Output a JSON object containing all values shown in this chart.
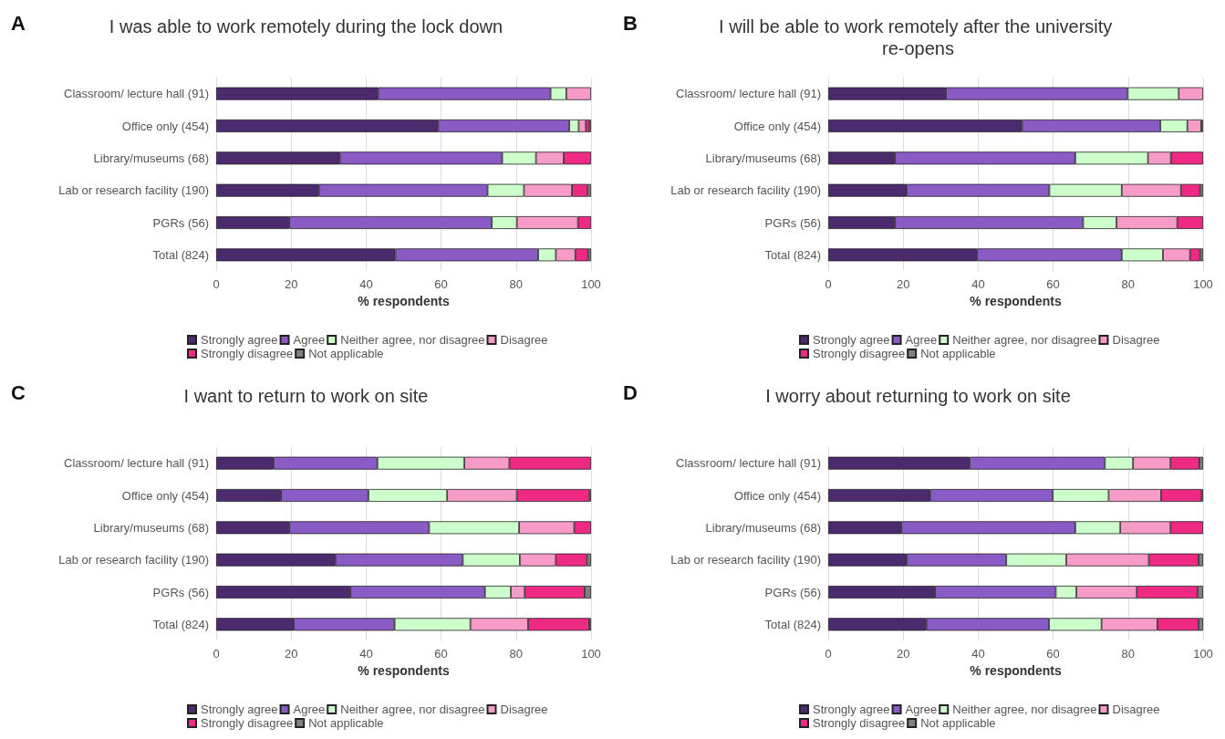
{
  "chart_data": [
    {
      "type": "bar",
      "orientation": "horizontal",
      "stacked": true,
      "title": "I was able to work remotely during the lock down",
      "annotations": [
        "A"
      ],
      "categories": [
        "Classroom/ lecture hall (91)",
        "Office only (454)",
        "Library/museums (68)",
        "Lab or research facility (190)",
        "PGRs (56)",
        "Total (824)"
      ],
      "xlabel": "% respondents",
      "xlim": [
        0,
        100
      ],
      "xticks": [
        0,
        20,
        40,
        60,
        80,
        100
      ],
      "grid": "x",
      "legend": "bottom",
      "series": [
        {
          "name": "Strongly agree",
          "color": "#4b2a6e",
          "values": [
            43.2,
            59.2,
            33.0,
            27.4,
            19.5,
            47.8
          ]
        },
        {
          "name": "Agree",
          "color": "#8a5bc4",
          "values": [
            46.0,
            35.0,
            43.3,
            45.0,
            54.0,
            38.1
          ]
        },
        {
          "name": "Neither agree, nor disagree",
          "color": "#ccffcc",
          "values": [
            4.2,
            2.5,
            9.0,
            9.7,
            6.7,
            4.7
          ]
        },
        {
          "name": "Disagree",
          "color": "#f79cc8",
          "values": [
            6.6,
            1.9,
            7.4,
            12.8,
            16.3,
            5.2
          ]
        },
        {
          "name": "Strongly disagree",
          "color": "#ee2a85",
          "values": [
            0,
            1.0,
            7.3,
            4.2,
            3.5,
            3.4
          ]
        },
        {
          "name": "Not applicable",
          "color": "#808080",
          "values": [
            0,
            0.4,
            0,
            0.9,
            0,
            0.8
          ]
        }
      ]
    },
    {
      "type": "bar",
      "orientation": "horizontal",
      "stacked": true,
      "title": "I will be able to work remotely after the university re-opens",
      "annotations": [
        "B"
      ],
      "categories": [
        "Classroom/ lecture hall (91)",
        "Office only (454)",
        "Library/museums (68)",
        "Lab or research facility (190)",
        "PGRs (56)",
        "Total (824)"
      ],
      "xlabel": "% respondents",
      "xlim": [
        0,
        100
      ],
      "xticks": [
        0,
        20,
        40,
        60,
        80,
        100
      ],
      "grid": "x",
      "legend": "bottom",
      "series": [
        {
          "name": "Strongly agree",
          "color": "#4b2a6e",
          "values": [
            31.4,
            51.7,
            17.8,
            20.9,
            17.8,
            39.7
          ]
        },
        {
          "name": "Agree",
          "color": "#8a5bc4",
          "values": [
            48.5,
            36.9,
            48.1,
            38.1,
            50.2,
            38.6
          ]
        },
        {
          "name": "Neither agree, nor disagree",
          "color": "#ccffcc",
          "values": [
            13.6,
            7.2,
            19.4,
            19.3,
            8.9,
            11.0
          ]
        },
        {
          "name": "Disagree",
          "color": "#f79cc8",
          "values": [
            6.5,
            3.7,
            6.1,
            15.8,
            16.2,
            7.2
          ]
        },
        {
          "name": "Strongly disagree",
          "color": "#ee2a85",
          "values": [
            0,
            0,
            8.6,
            5.1,
            6.9,
            2.7
          ]
        },
        {
          "name": "Not applicable",
          "color": "#808080",
          "values": [
            0,
            0.5,
            0,
            0.8,
            0,
            0.8
          ]
        }
      ]
    },
    {
      "type": "bar",
      "orientation": "horizontal",
      "stacked": true,
      "title": "I want to return to work on site",
      "annotations": [
        "C"
      ],
      "categories": [
        "Classroom/ lecture hall (91)",
        "Office only (454)",
        "Library/museums (68)",
        "Lab or research facility (190)",
        "PGRs (56)",
        "Total (824)"
      ],
      "xlabel": "% respondents",
      "xlim": [
        0,
        100
      ],
      "xticks": [
        0,
        20,
        40,
        60,
        80,
        100
      ],
      "grid": "x",
      "legend": "bottom",
      "series": [
        {
          "name": "Strongly agree",
          "color": "#4b2a6e",
          "values": [
            15.3,
            17.3,
            19.5,
            31.8,
            35.8,
            20.7
          ]
        },
        {
          "name": "Agree",
          "color": "#8a5bc4",
          "values": [
            27.7,
            23.3,
            37.3,
            34.0,
            35.9,
            26.9
          ]
        },
        {
          "name": "Neither agree, nor disagree",
          "color": "#ccffcc",
          "values": [
            23.2,
            21.0,
            24.0,
            15.2,
            6.9,
            20.2
          ]
        },
        {
          "name": "Disagree",
          "color": "#f79cc8",
          "values": [
            12.0,
            18.6,
            14.7,
            9.6,
            3.7,
            15.4
          ]
        },
        {
          "name": "Strongly disagree",
          "color": "#ee2a85",
          "values": [
            21.8,
            19.4,
            4.5,
            8.3,
            16.0,
            16.3
          ]
        },
        {
          "name": "Not applicable",
          "color": "#808080",
          "values": [
            0,
            0.4,
            0,
            1.1,
            1.7,
            0.5
          ]
        }
      ]
    },
    {
      "type": "bar",
      "orientation": "horizontal",
      "stacked": true,
      "title": "I worry about returning to work on site",
      "annotations": [
        "D"
      ],
      "categories": [
        "Classroom/ lecture hall (91)",
        "Office only (454)",
        "Library/museums (68)",
        "Lab or research facility (190)",
        "PGRs (56)",
        "Total (824)"
      ],
      "xlabel": "% respondents",
      "xlim": [
        0,
        100
      ],
      "xticks": [
        0,
        20,
        40,
        60,
        80,
        100
      ],
      "grid": "x",
      "legend": "bottom",
      "series": [
        {
          "name": "Strongly agree",
          "color": "#4b2a6e",
          "values": [
            37.7,
            27.2,
            19.5,
            20.9,
            28.5,
            26.2
          ]
        },
        {
          "name": "Agree",
          "color": "#8a5bc4",
          "values": [
            36.1,
            32.7,
            46.4,
            26.6,
            32.2,
            32.7
          ]
        },
        {
          "name": "Neither agree, nor disagree",
          "color": "#ccffcc",
          "values": [
            7.5,
            14.9,
            12.0,
            16.0,
            5.5,
            14.0
          ]
        },
        {
          "name": "Disagree",
          "color": "#f79cc8",
          "values": [
            10.0,
            14.0,
            13.4,
            22.0,
            16.1,
            14.9
          ]
        },
        {
          "name": "Strongly disagree",
          "color": "#ee2a85",
          "values": [
            7.7,
            10.8,
            8.7,
            13.3,
            16.2,
            11.0
          ]
        },
        {
          "name": "Not applicable",
          "color": "#808080",
          "values": [
            1.0,
            0.4,
            0,
            1.2,
            1.5,
            1.2
          ]
        }
      ]
    }
  ]
}
